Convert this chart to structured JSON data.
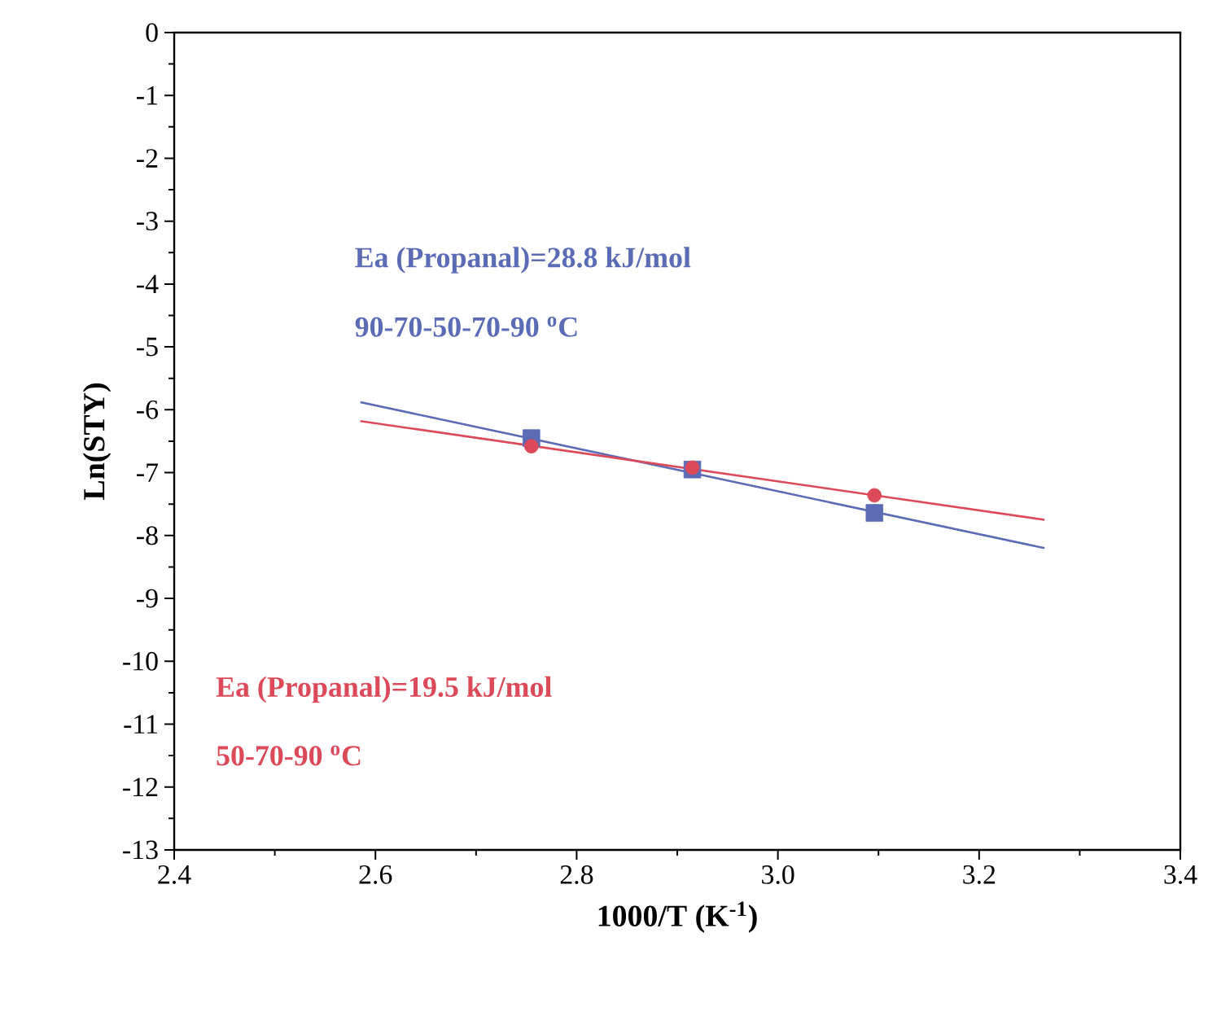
{
  "chart_data": {
    "type": "scatter",
    "xlabel": "1000/T (K$^{-1}$)",
    "ylabel": "Ln(STY)",
    "xlim": [
      2.4,
      3.4
    ],
    "xticks": [
      2.4,
      2.6,
      2.8,
      {
        "value": 3.0,
        "label": "3.0"
      },
      3.2,
      3.4
    ],
    "ylim": [
      -13,
      0
    ],
    "yticks": [
      0,
      -1,
      -2,
      -3,
      -4,
      -5,
      -6,
      -7,
      -8,
      -9,
      -10,
      -11,
      -12,
      -13
    ],
    "grid": false,
    "series": [
      {
        "marker": "square",
        "color": "#5b6bb5",
        "x": [
          2.755,
          2.915,
          3.096
        ],
        "values": [
          -6.45,
          -6.95,
          -7.64
        ]
      },
      {
        "marker": "circle",
        "color": "#dc4a5a",
        "x": [
          2.755,
          2.915,
          3.096
        ],
        "values": [
          -6.58,
          -6.92,
          -7.36
        ]
      },
      {
        "type": "line",
        "marker": "none",
        "color": "#5b6bb5",
        "x": [
          2.585,
          3.265
        ],
        "values": [
          -5.88,
          -8.2
        ]
      },
      {
        "type": "line",
        "marker": "none",
        "color": "#dc4a5a",
        "x": [
          2.585,
          3.265
        ],
        "values": [
          -6.18,
          -7.75
        ]
      }
    ],
    "annotations": [
      "Ea (Propanal)=28.8 kJ/mol",
      "90-70-50-70-90 $^{o}$C",
      "Ea (Propanal)=19.5 kJ/mol",
      "50-70-90 $^{o}$C"
    ]
  }
}
